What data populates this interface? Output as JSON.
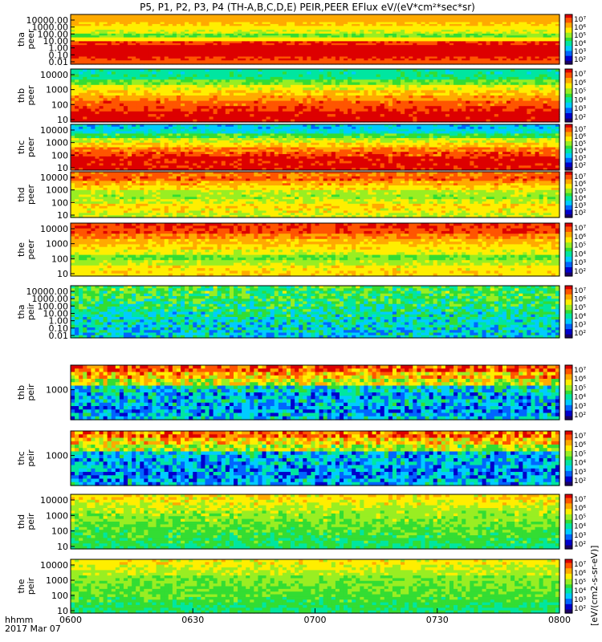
{
  "chart_data": {
    "type": "heatmap",
    "title": "P5, P1, P2, P3, P4 (TH-A,B,C,D,E) PEIR,PEER EFlux eV/(eV*cm²*sec*sr)",
    "colorbar_label": "[eV/(cm2-s-sr-eV)]",
    "colormap": [
      "#1a0066",
      "#0000cc",
      "#0066ff",
      "#00ccff",
      "#00e6a0",
      "#33dd33",
      "#99ee22",
      "#ffee00",
      "#ffaa00",
      "#ff5500",
      "#dd0000"
    ],
    "colorbar_ticks": [
      "10²",
      "10³",
      "10⁴",
      "10⁵",
      "10⁶",
      "10⁷"
    ],
    "x_axis": {
      "ticks": [
        "0600",
        "0630",
        "0700",
        "0730",
        "0800"
      ],
      "label": "hhmm",
      "date": "2017 Mar 07",
      "range": [
        "06:00",
        "08:00"
      ]
    },
    "panels": [
      {
        "probe": "tha",
        "species": "peer",
        "y_ticks": [
          "10000.00",
          "1000.00",
          "100.00",
          "10.00",
          "1.00",
          "0.10",
          "0.01"
        ],
        "scale": "log"
      },
      {
        "probe": "thb",
        "species": "peer",
        "y_ticks": [
          "10000",
          "1000",
          "100",
          "10"
        ],
        "scale": "log"
      },
      {
        "probe": "thc",
        "species": "peer",
        "y_ticks": [
          "10000",
          "1000",
          "100",
          "10"
        ],
        "scale": "log"
      },
      {
        "probe": "thd",
        "species": "peer",
        "y_ticks": [
          "10000",
          "1000",
          "100",
          "10"
        ],
        "scale": "log"
      },
      {
        "probe": "the",
        "species": "peer",
        "y_ticks": [
          "10000",
          "1000",
          "100",
          "10"
        ],
        "scale": "log"
      },
      {
        "probe": "tha",
        "species": "peir",
        "y_ticks": [
          "10000.00",
          "1000.00",
          "100.00",
          "10.00",
          "1.00",
          "0.10",
          "0.01"
        ],
        "scale": "log"
      },
      {
        "probe": "thb",
        "species": "peir",
        "y_ticks": [
          "1000"
        ],
        "scale": "log"
      },
      {
        "probe": "thc",
        "species": "peir",
        "y_ticks": [
          "1000"
        ],
        "scale": "log"
      },
      {
        "probe": "thd",
        "species": "peir",
        "y_ticks": [
          "10000",
          "1000",
          "100",
          "10"
        ],
        "scale": "log"
      },
      {
        "probe": "the",
        "species": "peir",
        "y_ticks": [
          "10000",
          "1000",
          "100",
          "10"
        ],
        "scale": "log"
      }
    ]
  }
}
